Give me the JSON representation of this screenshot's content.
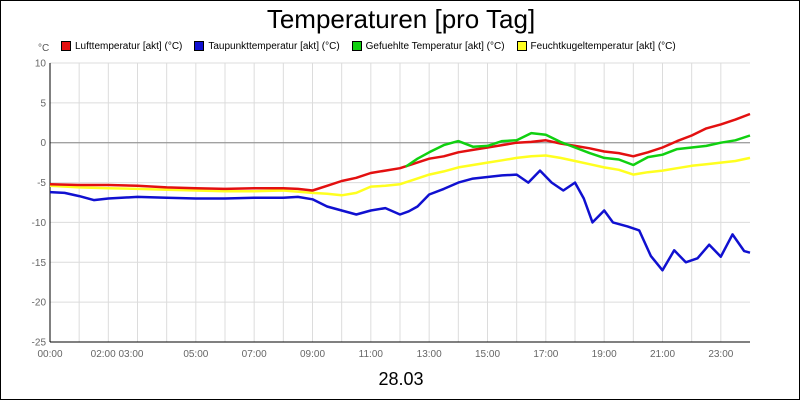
{
  "chart_data": {
    "type": "line",
    "title": "Temperaturen [pro Tag]",
    "date_label": "28.03",
    "unit_label": "°C",
    "ylim": [
      -25,
      10
    ],
    "yticks": [
      10,
      5,
      0,
      -5,
      -10,
      -15,
      -20,
      -25
    ],
    "x_range": [
      0,
      24
    ],
    "xticks": [
      {
        "t": 0,
        "label": "00:00"
      },
      {
        "t": 2.3,
        "label": "02:00 03:00"
      },
      {
        "t": 5,
        "label": "05:00"
      },
      {
        "t": 7,
        "label": "07:00"
      },
      {
        "t": 9,
        "label": "09:00"
      },
      {
        "t": 11,
        "label": "11:00"
      },
      {
        "t": 13,
        "label": "13:00"
      },
      {
        "t": 15,
        "label": "15:00"
      },
      {
        "t": 17,
        "label": "17:00"
      },
      {
        "t": 19,
        "label": "19:00"
      },
      {
        "t": 21,
        "label": "21:00"
      },
      {
        "t": 23,
        "label": "23:00"
      }
    ],
    "series": [
      {
        "name": "Lufttemperatur [akt] (°C)",
        "color": "#e31010",
        "points": [
          [
            0,
            -5.2
          ],
          [
            1,
            -5.3
          ],
          [
            2,
            -5.3
          ],
          [
            3,
            -5.4
          ],
          [
            4,
            -5.6
          ],
          [
            5,
            -5.7
          ],
          [
            6,
            -5.8
          ],
          [
            7,
            -5.7
          ],
          [
            8,
            -5.7
          ],
          [
            8.5,
            -5.8
          ],
          [
            9,
            -6
          ],
          [
            9.5,
            -5.4
          ],
          [
            10,
            -4.8
          ],
          [
            10.5,
            -4.4
          ],
          [
            11,
            -3.8
          ],
          [
            11.5,
            -3.5
          ],
          [
            12,
            -3.2
          ],
          [
            12.5,
            -2.6
          ],
          [
            13,
            -2
          ],
          [
            13.5,
            -1.7
          ],
          [
            14,
            -1.2
          ],
          [
            14.5,
            -0.9
          ],
          [
            15,
            -0.6
          ],
          [
            15.5,
            -0.3
          ],
          [
            16,
            0
          ],
          [
            16.5,
            0.1
          ],
          [
            17,
            0.3
          ],
          [
            17.5,
            -0.1
          ],
          [
            18,
            -0.4
          ],
          [
            18.5,
            -0.7
          ],
          [
            19,
            -1.1
          ],
          [
            19.5,
            -1.3
          ],
          [
            20,
            -1.7
          ],
          [
            20.5,
            -1.2
          ],
          [
            21,
            -0.6
          ],
          [
            21.5,
            0.2
          ],
          [
            22,
            0.9
          ],
          [
            22.5,
            1.8
          ],
          [
            23,
            2.3
          ],
          [
            23.5,
            2.9
          ],
          [
            24,
            3.6
          ]
        ]
      },
      {
        "name": "Taupunkttemperatur [akt] (°C)",
        "color": "#1010d0",
        "points": [
          [
            0,
            -6.2
          ],
          [
            0.5,
            -6.3
          ],
          [
            1,
            -6.7
          ],
          [
            1.5,
            -7.2
          ],
          [
            2,
            -7
          ],
          [
            3,
            -6.8
          ],
          [
            4,
            -6.9
          ],
          [
            5,
            -7
          ],
          [
            6,
            -7
          ],
          [
            7,
            -6.9
          ],
          [
            8,
            -6.9
          ],
          [
            8.5,
            -6.8
          ],
          [
            9,
            -7.1
          ],
          [
            9.5,
            -8
          ],
          [
            10,
            -8.5
          ],
          [
            10.5,
            -9
          ],
          [
            11,
            -8.5
          ],
          [
            11.5,
            -8.2
          ],
          [
            12,
            -9
          ],
          [
            12.3,
            -8.6
          ],
          [
            12.6,
            -8
          ],
          [
            13,
            -6.5
          ],
          [
            13.5,
            -5.8
          ],
          [
            14,
            -5
          ],
          [
            14.5,
            -4.5
          ],
          [
            15,
            -4.3
          ],
          [
            15.5,
            -4.1
          ],
          [
            16,
            -4
          ],
          [
            16.4,
            -5
          ],
          [
            16.8,
            -3.5
          ],
          [
            17.2,
            -5
          ],
          [
            17.6,
            -6
          ],
          [
            18,
            -5
          ],
          [
            18.3,
            -7
          ],
          [
            18.6,
            -10
          ],
          [
            19,
            -8.5
          ],
          [
            19.3,
            -10
          ],
          [
            19.8,
            -10.5
          ],
          [
            20.2,
            -11
          ],
          [
            20.6,
            -14.2
          ],
          [
            21,
            -16
          ],
          [
            21.4,
            -13.5
          ],
          [
            21.8,
            -15
          ],
          [
            22.2,
            -14.5
          ],
          [
            22.6,
            -12.8
          ],
          [
            23,
            -14.3
          ],
          [
            23.4,
            -11.5
          ],
          [
            23.8,
            -13.6
          ],
          [
            24,
            -13.8
          ]
        ]
      },
      {
        "name": "Gefuehlte Temperatur [akt] (°C)",
        "color": "#10d010",
        "points": [
          [
            12.2,
            -3
          ],
          [
            12.6,
            -2
          ],
          [
            13,
            -1.2
          ],
          [
            13.5,
            -0.3
          ],
          [
            14,
            0.2
          ],
          [
            14.5,
            -0.5
          ],
          [
            15,
            -0.4
          ],
          [
            15.5,
            0.2
          ],
          [
            16,
            0.3
          ],
          [
            16.5,
            1.2
          ],
          [
            17,
            1
          ],
          [
            17.5,
            0.1
          ],
          [
            18,
            -0.6
          ],
          [
            18.5,
            -1.3
          ],
          [
            19,
            -1.9
          ],
          [
            19.5,
            -2.1
          ],
          [
            20,
            -2.8
          ],
          [
            20.5,
            -1.8
          ],
          [
            21,
            -1.5
          ],
          [
            21.5,
            -0.8
          ],
          [
            22,
            -0.6
          ],
          [
            22.5,
            -0.4
          ],
          [
            23,
            0
          ],
          [
            23.5,
            0.3
          ],
          [
            24,
            0.9
          ]
        ]
      },
      {
        "name": "Feuchtkugeltemperatur [akt] (°C)",
        "color": "#ffff20",
        "points": [
          [
            0,
            -5.4
          ],
          [
            1,
            -5.6
          ],
          [
            2,
            -5.7
          ],
          [
            3,
            -5.8
          ],
          [
            4,
            -5.9
          ],
          [
            5,
            -6
          ],
          [
            6,
            -6.1
          ],
          [
            7,
            -6.1
          ],
          [
            8,
            -6
          ],
          [
            9,
            -6.3
          ],
          [
            9.5,
            -6.4
          ],
          [
            10,
            -6.6
          ],
          [
            10.5,
            -6.3
          ],
          [
            11,
            -5.5
          ],
          [
            11.5,
            -5.4
          ],
          [
            12,
            -5.2
          ],
          [
            12.5,
            -4.6
          ],
          [
            13,
            -4
          ],
          [
            13.5,
            -3.6
          ],
          [
            14,
            -3.1
          ],
          [
            14.5,
            -2.8
          ],
          [
            15,
            -2.5
          ],
          [
            15.5,
            -2.2
          ],
          [
            16,
            -1.9
          ],
          [
            16.5,
            -1.7
          ],
          [
            17,
            -1.6
          ],
          [
            17.5,
            -1.9
          ],
          [
            18,
            -2.3
          ],
          [
            18.5,
            -2.7
          ],
          [
            19,
            -3.1
          ],
          [
            19.5,
            -3.4
          ],
          [
            20,
            -4
          ],
          [
            20.5,
            -3.7
          ],
          [
            21,
            -3.5
          ],
          [
            21.5,
            -3.2
          ],
          [
            22,
            -2.9
          ],
          [
            22.5,
            -2.7
          ],
          [
            23,
            -2.5
          ],
          [
            23.5,
            -2.3
          ],
          [
            24,
            -1.9
          ]
        ]
      }
    ]
  }
}
